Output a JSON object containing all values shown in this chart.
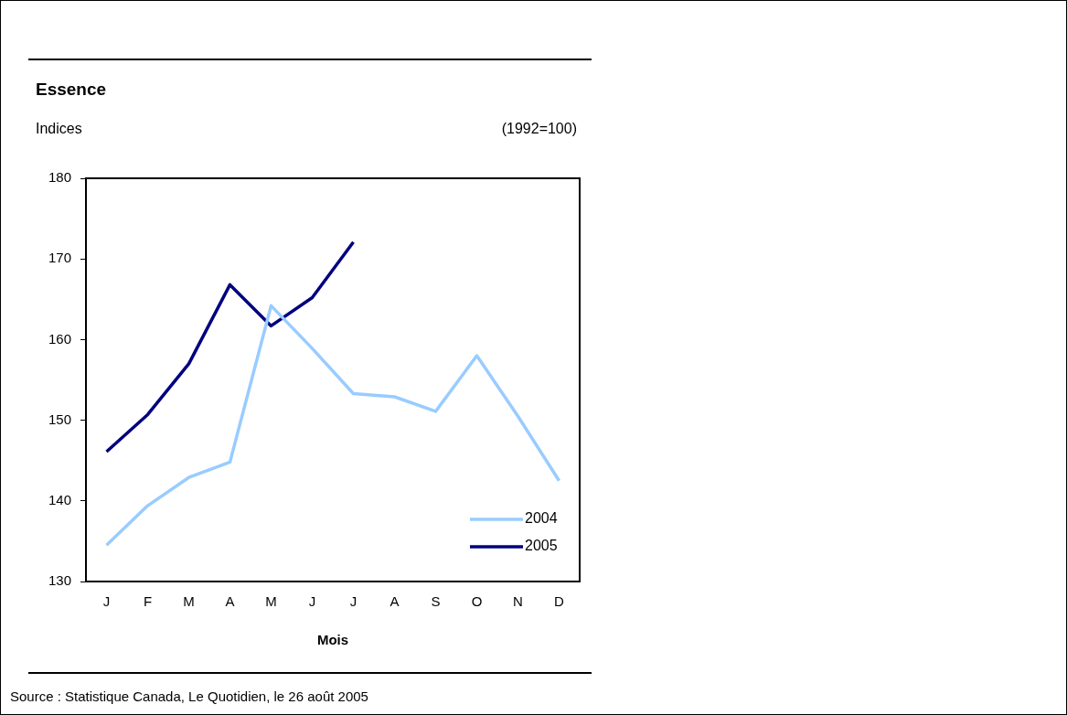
{
  "chart_data": {
    "type": "line",
    "title": "Essence",
    "ylabel": "Indices",
    "subtitle": "(1992=100)",
    "xlabel": "Mois",
    "annotations": [
      "Source : Statistique Canada, Le Quotidien, le 26 août 2005"
    ],
    "categories": [
      "J",
      "F",
      "M",
      "A",
      "M",
      "J",
      "J",
      "A",
      "S",
      "O",
      "N",
      "D"
    ],
    "series": [
      {
        "name": "2004",
        "color": "#99ccff",
        "values": [
          134.5,
          139.4,
          142.9,
          144.8,
          164.2,
          158.9,
          153.3,
          152.9,
          151.1,
          158.0,
          150.5,
          142.5
        ]
      },
      {
        "name": "2005",
        "color": "#000080",
        "values": [
          146.1,
          150.7,
          157.0,
          166.8,
          161.7,
          165.2,
          172.1,
          null,
          null,
          null,
          null,
          null
        ]
      }
    ],
    "ylim": [
      130,
      180
    ],
    "yticks": [
      130,
      140,
      150,
      160,
      170,
      180
    ],
    "legend": "bottom right",
    "marker": "none",
    "line_style": "solid"
  }
}
